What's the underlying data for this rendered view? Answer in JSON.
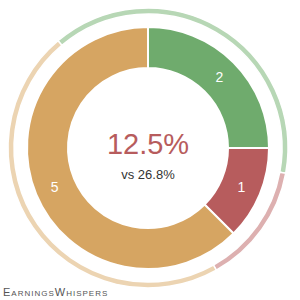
{
  "chart_data": {
    "type": "donut",
    "center_label": "12.5%",
    "center_sublabel": "vs 26.8%",
    "footer": "EarningsWhispers",
    "data_labels": true,
    "series": [
      {
        "values": [
          2,
          1,
          5
        ],
        "colors": [
          "#6fab6d",
          "#b75c5d",
          "#d6a562"
        ]
      },
      {
        "values": [
          39,
          14,
          47
        ],
        "colors": [
          "#b7d7b5",
          "#ddb0b0",
          "#ecd4b2"
        ]
      }
    ]
  }
}
